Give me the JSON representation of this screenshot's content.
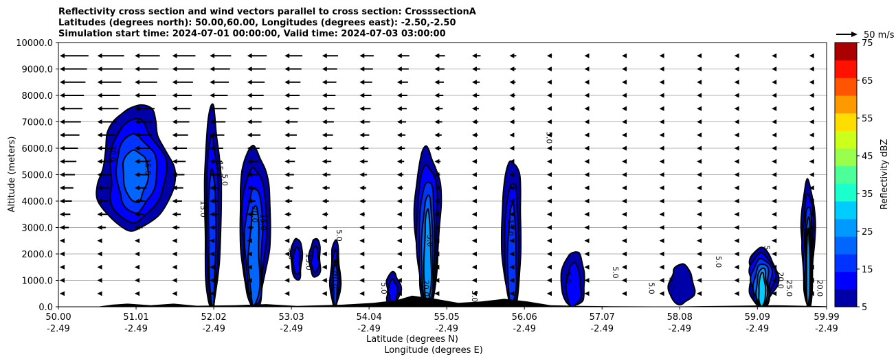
{
  "chart_data": {
    "type": "contour",
    "title_lines": [
      "Reflectivity cross section and wind vectors parallel to cross section: CrosssectionA",
      "Latitudes (degrees north): 50.00,60.00, Longitudes (degrees east): -2.50,-2.50",
      "Simulation start time: 2024-07-01 00:00:00, Valid time: 2024-07-03 03:00:00"
    ],
    "ylabel": "Altitude (meters)",
    "xlabel_lines": [
      "Latitude (degrees N)",
      "Longitude (degrees E)"
    ],
    "ylim": [
      0,
      10000
    ],
    "xlim": [
      50.0,
      59.99
    ],
    "y_ticks": [
      0,
      1000,
      2000,
      3000,
      4000,
      5000,
      6000,
      7000,
      8000,
      9000,
      10000
    ],
    "y_tick_labels": [
      "0.0",
      "1000.0",
      "2000.0",
      "3000.0",
      "4000.0",
      "5000.0",
      "6000.0",
      "7000.0",
      "8000.0",
      "9000.0",
      "10000.0"
    ],
    "x_ticks": [
      {
        "lat": "50.00",
        "lon": "-2.49",
        "value": 50.0
      },
      {
        "lat": "51.01",
        "lon": "-2.49",
        "value": 51.01
      },
      {
        "lat": "52.02",
        "lon": "-2.49",
        "value": 52.02
      },
      {
        "lat": "53.03",
        "lon": "-2.49",
        "value": 53.03
      },
      {
        "lat": "54.04",
        "lon": "-2.49",
        "value": 54.04
      },
      {
        "lat": "55.05",
        "lon": "-2.49",
        "value": 55.05
      },
      {
        "lat": "56.06",
        "lon": "-2.49",
        "value": 56.06
      },
      {
        "lat": "57.07",
        "lon": "-2.49",
        "value": 57.07
      },
      {
        "lat": "58.08",
        "lon": "-2.49",
        "value": 58.08
      },
      {
        "lat": "59.09",
        "lon": "-2.49",
        "value": 59.09
      },
      {
        "lat": "59.99",
        "lon": "-2.49",
        "value": 59.99
      }
    ],
    "grid": "horizontal",
    "quiver_key_label": "50 m/s",
    "colorbar": {
      "label": "Reflectivity dBZ",
      "levels": [
        5,
        10,
        15,
        20,
        25,
        30,
        35,
        40,
        45,
        50,
        55,
        60,
        65,
        70,
        75
      ],
      "tick_labels": [
        "5",
        "15",
        "25",
        "35",
        "45",
        "55",
        "65",
        "75"
      ],
      "colors": [
        "#0000a8",
        "#0000ff",
        "#0033ff",
        "#0066ff",
        "#0099ff",
        "#00ccff",
        "#1affcc",
        "#4cff99",
        "#99ff4c",
        "#ccff1a",
        "#ffdd00",
        "#ff9900",
        "#ff5500",
        "#ff1100",
        "#aa0000"
      ]
    },
    "contour_labels": [
      {
        "text": "20.0",
        "x": 50.68,
        "y": 5800
      },
      {
        "text": "15.0",
        "x": 51.13,
        "y": 5300
      },
      {
        "text": "15.0",
        "x": 52.07,
        "y": 5200
      },
      {
        "text": "5.0",
        "x": 52.13,
        "y": 4800
      },
      {
        "text": "15.0",
        "x": 51.85,
        "y": 3700
      },
      {
        "text": "20.0",
        "x": 52.52,
        "y": 3500
      },
      {
        "text": "15.0",
        "x": 52.63,
        "y": 3200
      },
      {
        "text": "5.0",
        "x": 53.0,
        "y": 2000
      },
      {
        "text": "15.0",
        "x": 53.22,
        "y": 1700
      },
      {
        "text": "15.0",
        "x": 53.55,
        "y": 1500
      },
      {
        "text": "5.0",
        "x": 53.62,
        "y": 2700
      },
      {
        "text": "20.0",
        "x": 53.56,
        "y": 1000
      },
      {
        "text": "5.0",
        "x": 54.2,
        "y": 700
      },
      {
        "text": "5.0",
        "x": 54.8,
        "y": 2500
      },
      {
        "text": "20.0",
        "x": 54.75,
        "y": 700
      },
      {
        "text": "5.0",
        "x": 55.38,
        "y": 400
      },
      {
        "text": "15.0",
        "x": 55.85,
        "y": 3000
      },
      {
        "text": "5.0",
        "x": 56.35,
        "y": 6400
      },
      {
        "text": "5.0",
        "x": 56.6,
        "y": 1100
      },
      {
        "text": "5.0",
        "x": 57.21,
        "y": 1300
      },
      {
        "text": "5.0",
        "x": 57.68,
        "y": 700
      },
      {
        "text": "5.0",
        "x": 57.95,
        "y": 900
      },
      {
        "text": "5.0",
        "x": 58.55,
        "y": 1700
      },
      {
        "text": "5.0",
        "x": 59.18,
        "y": 2100
      },
      {
        "text": "20.0",
        "x": 59.36,
        "y": 1000
      },
      {
        "text": "25.0",
        "x": 59.47,
        "y": 700
      },
      {
        "text": "20.0",
        "x": 59.87,
        "y": 700
      }
    ],
    "cells": [
      {
        "center_x": 51.0,
        "bottom": 2900,
        "top": 7600,
        "peak_dbz": 25
      },
      {
        "center_x": 52.0,
        "bottom": 0,
        "top": 7500,
        "peak_dbz": 20
      },
      {
        "center_x": 52.55,
        "bottom": 0,
        "top": 6000,
        "peak_dbz": 25
      },
      {
        "center_x": 53.1,
        "bottom": 1000,
        "top": 2600,
        "peak_dbz": 15
      },
      {
        "center_x": 53.34,
        "bottom": 1100,
        "top": 2600,
        "peak_dbz": 15
      },
      {
        "center_x": 53.6,
        "bottom": 0,
        "top": 2500,
        "peak_dbz": 20
      },
      {
        "center_x": 54.35,
        "bottom": 0,
        "top": 1300,
        "peak_dbz": 15
      },
      {
        "center_x": 54.8,
        "bottom": 0,
        "top": 6000,
        "peak_dbz": 30
      },
      {
        "center_x": 55.9,
        "bottom": 0,
        "top": 5600,
        "peak_dbz": 20
      },
      {
        "center_x": 56.7,
        "bottom": 0,
        "top": 2100,
        "peak_dbz": 15
      },
      {
        "center_x": 58.1,
        "bottom": 100,
        "top": 1600,
        "peak_dbz": 10
      },
      {
        "center_x": 59.15,
        "bottom": 0,
        "top": 2200,
        "peak_dbz": 35
      },
      {
        "center_x": 59.75,
        "bottom": 0,
        "top": 4800,
        "peak_dbz": 30
      }
    ],
    "wind_vectors": {
      "levels": [
        500,
        1000,
        1500,
        2000,
        2500,
        3000,
        3500,
        4000,
        4500,
        5000,
        5500,
        6000,
        6500,
        7000,
        7500,
        8000,
        8500,
        9000,
        9500
      ],
      "columns": 21,
      "direction": "westward",
      "max_speed_mps": 50
    }
  }
}
